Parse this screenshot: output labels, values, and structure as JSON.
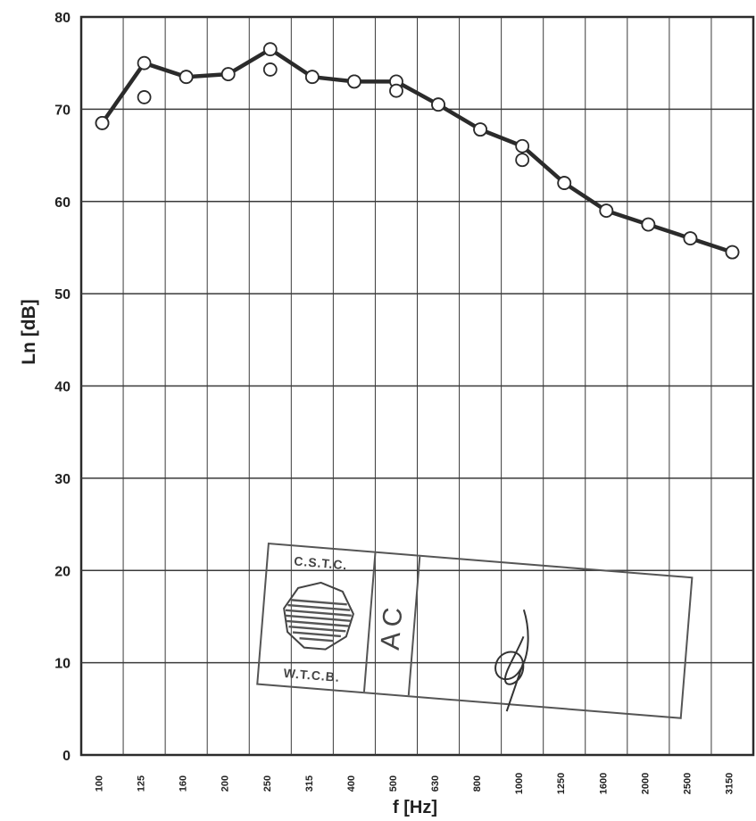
{
  "chart_data": {
    "type": "line",
    "title": "",
    "xlabel": "f [Hz]",
    "ylabel": "Ln [dB]",
    "ylim": [
      0,
      80
    ],
    "yticks": [
      0,
      10,
      20,
      30,
      40,
      50,
      60,
      70,
      80
    ],
    "categories": [
      "100",
      "125",
      "160",
      "200",
      "250",
      "315",
      "400",
      "500",
      "630",
      "800",
      "1000",
      "1250",
      "1600",
      "2000",
      "2500",
      "3150"
    ],
    "grid": true,
    "series": [
      {
        "style": "line-with-circles",
        "values": [
          68.5,
          75.0,
          73.5,
          73.8,
          76.5,
          73.5,
          73.0,
          73.0,
          70.5,
          67.8,
          66.0,
          62.0,
          59.0,
          57.5,
          56.0,
          54.5
        ]
      },
      {
        "style": "circles-only",
        "values": [
          68.5,
          71.3,
          73.5,
          73.8,
          74.3,
          73.5,
          73.0,
          72.0,
          70.5,
          67.8,
          64.5,
          62.0,
          59.0,
          57.5,
          56.0,
          54.5
        ]
      }
    ],
    "line_color": "#2b2b2b",
    "grid_color": "#3a3a3a"
  },
  "stamp": {
    "top_text": "C.S.T.C.",
    "bottom_text": "W.T.C.B.",
    "middle_text": "AC"
  }
}
